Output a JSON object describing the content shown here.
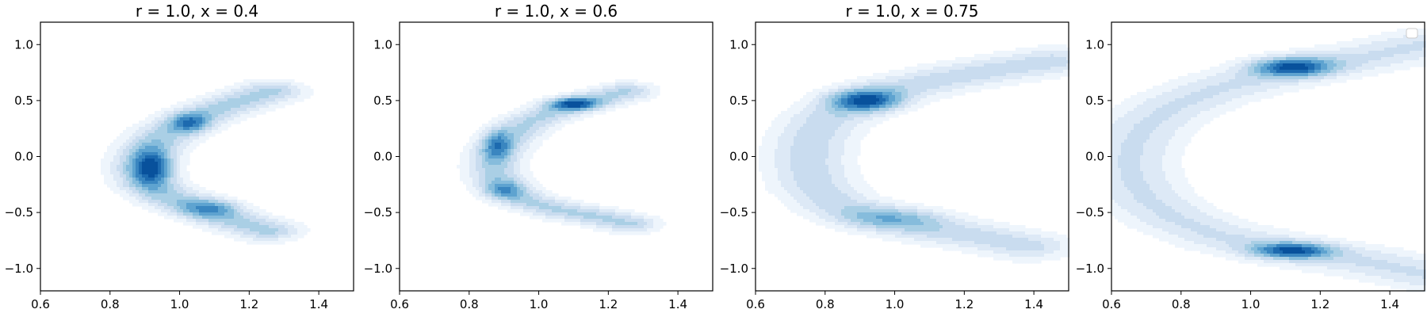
{
  "chart_data": [
    {
      "type": "contour",
      "title": "r = 1.0, x = 0.4",
      "xlim": [
        0.6,
        1.5
      ],
      "ylim": [
        -1.2,
        1.2
      ],
      "x_ticks": [
        "0.6",
        "0.8",
        "1.0",
        "1.2",
        "1.4"
      ],
      "y_ticks": [
        "−1.0",
        "−0.5",
        "0.0",
        "0.5",
        "1.0"
      ],
      "colormap": "Blues",
      "curve": {
        "x": [
          1.26,
          1.14,
          1.04,
          0.96,
          0.91,
          0.89,
          0.91,
          0.97,
          1.05,
          1.14,
          1.25
        ],
        "y": [
          0.58,
          0.46,
          0.34,
          0.2,
          0.05,
          -0.1,
          -0.24,
          -0.36,
          -0.46,
          -0.56,
          -0.66
        ]
      },
      "peaks": [
        {
          "x": 0.92,
          "y": -0.1,
          "sx": 0.04,
          "sy": 0.12,
          "w": 1.0
        },
        {
          "x": 1.03,
          "y": 0.3,
          "sx": 0.04,
          "sy": 0.06,
          "w": 0.75
        },
        {
          "x": 1.09,
          "y": -0.46,
          "sx": 0.06,
          "sy": 0.06,
          "w": 0.6
        }
      ],
      "spread": 0.07,
      "reach": 0.75
    },
    {
      "type": "contour",
      "title": "r = 1.0, x = 0.6",
      "xlim": [
        0.6,
        1.5
      ],
      "ylim": [
        -1.2,
        1.2
      ],
      "x_ticks": [
        "0.6",
        "0.8",
        "1.0",
        "1.2",
        "1.4"
      ],
      "y_ticks": [
        "−1.0",
        "−0.5",
        "0.0",
        "0.5",
        "1.0"
      ],
      "colormap": "Blues",
      "curve": {
        "x": [
          1.25,
          1.15,
          1.06,
          0.98,
          0.92,
          0.88,
          0.87,
          0.88,
          0.91,
          0.97,
          1.06,
          1.17,
          1.26
        ],
        "y": [
          0.58,
          0.5,
          0.42,
          0.32,
          0.18,
          0.04,
          -0.08,
          -0.2,
          -0.3,
          -0.4,
          -0.48,
          -0.54,
          -0.6
        ]
      },
      "peaks": [
        {
          "x": 1.1,
          "y": 0.47,
          "sx": 0.05,
          "sy": 0.04,
          "w": 1.0
        },
        {
          "x": 0.88,
          "y": 0.1,
          "sx": 0.03,
          "sy": 0.1,
          "w": 0.7
        },
        {
          "x": 0.9,
          "y": -0.3,
          "sx": 0.04,
          "sy": 0.06,
          "w": 0.55
        }
      ],
      "spread": 0.06,
      "reach": 0.7
    },
    {
      "type": "contour",
      "title": "r = 1.0, x = 0.75",
      "xlim": [
        0.6,
        1.5
      ],
      "ylim": [
        -1.2,
        1.2
      ],
      "x_ticks": [
        "0.6",
        "0.8",
        "1.0",
        "1.2",
        "1.4"
      ],
      "y_ticks": [
        "−1.0",
        "−0.5",
        "0.0",
        "0.5",
        "1.0"
      ],
      "colormap": "Blues",
      "curve": {
        "x": [
          1.45,
          1.3,
          1.15,
          1.0,
          0.88,
          0.8,
          0.76,
          0.75,
          0.77,
          0.83,
          0.95,
          1.1,
          1.25,
          1.38
        ],
        "y": [
          0.85,
          0.78,
          0.7,
          0.6,
          0.48,
          0.32,
          0.15,
          -0.05,
          -0.25,
          -0.42,
          -0.55,
          -0.65,
          -0.72,
          -0.8
        ]
      },
      "peaks": [
        {
          "x": 0.92,
          "y": 0.5,
          "sx": 0.07,
          "sy": 0.07,
          "w": 1.0
        },
        {
          "x": 1.0,
          "y": -0.55,
          "sx": 0.11,
          "sy": 0.07,
          "w": 0.42
        }
      ],
      "spread": 0.09,
      "reach": 0.55
    },
    {
      "type": "contour",
      "title": "",
      "xlim": [
        0.6,
        1.5
      ],
      "ylim": [
        -1.2,
        1.2
      ],
      "x_ticks": [
        "0.6",
        "0.8",
        "1.0",
        "1.2",
        "1.4"
      ],
      "y_ticks": [
        "−1.0",
        "−0.5",
        "0.0",
        "0.5",
        "1.0"
      ],
      "colormap": "Blues",
      "legend": "top-right (empty)",
      "curve": {
        "x": [
          1.5,
          1.35,
          1.2,
          1.05,
          0.9,
          0.78,
          0.7,
          0.66,
          0.65,
          0.66,
          0.7,
          0.78,
          0.9,
          1.05,
          1.2,
          1.35,
          1.5
        ],
        "y": [
          1.0,
          0.9,
          0.82,
          0.72,
          0.6,
          0.45,
          0.28,
          0.1,
          -0.05,
          -0.2,
          -0.38,
          -0.55,
          -0.7,
          -0.8,
          -0.88,
          -0.95,
          -1.05
        ]
      },
      "peaks": [
        {
          "x": 1.12,
          "y": 0.8,
          "sx": 0.08,
          "sy": 0.06,
          "w": 1.0
        },
        {
          "x": 1.12,
          "y": -0.84,
          "sx": 0.08,
          "sy": 0.05,
          "w": 0.95
        }
      ],
      "spread": 0.1,
      "reach": 0.45
    }
  ]
}
